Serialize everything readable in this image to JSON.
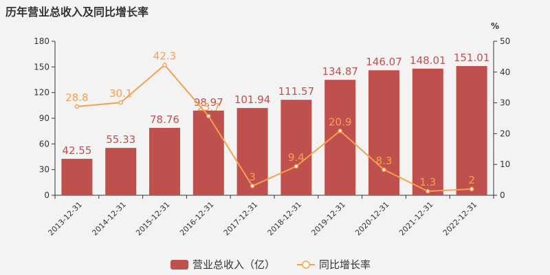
{
  "chart_data": {
    "type": "bar",
    "title": "历年营业总收入及同比增长率",
    "categories": [
      "2013-12-31",
      "2014-12-31",
      "2015-12-31",
      "2016-12-31",
      "2017-12-31",
      "2018-12-31",
      "2019-12-31",
      "2020-12-31",
      "2021-12-31",
      "2022-12-31"
    ],
    "series": [
      {
        "name": "营业总收入（亿）",
        "type": "bar",
        "axis": "left",
        "values": [
          42.55,
          55.33,
          78.76,
          98.97,
          101.94,
          111.57,
          134.87,
          146.07,
          148.01,
          151.01
        ],
        "labels": [
          "42.55",
          "55.33",
          "78.76",
          "98.97",
          "101.94",
          "111.57",
          "134.87",
          "146.07",
          "148.01",
          "151.01"
        ],
        "color": "#c0504d"
      },
      {
        "name": "同比增长率",
        "type": "line",
        "axis": "right",
        "values": [
          28.8,
          30.1,
          42.3,
          25.7,
          3,
          9.4,
          20.9,
          8.3,
          1.3,
          2
        ],
        "labels": [
          "28.8",
          "30.1",
          "42.3",
          "25.7",
          "3",
          "9.4",
          "20.9",
          "8.3",
          "1.3",
          "2"
        ],
        "color": "#f4a14f"
      }
    ],
    "y_left": {
      "range": [
        0,
        180
      ],
      "ticks": [
        "0",
        "30",
        "60",
        "90",
        "120",
        "150",
        "180"
      ]
    },
    "y_right": {
      "range": [
        0,
        50
      ],
      "ticks": [
        "0",
        "10",
        "20",
        "30",
        "40",
        "50"
      ],
      "unit": "%"
    },
    "grid": false,
    "legend": "bottom-center"
  }
}
